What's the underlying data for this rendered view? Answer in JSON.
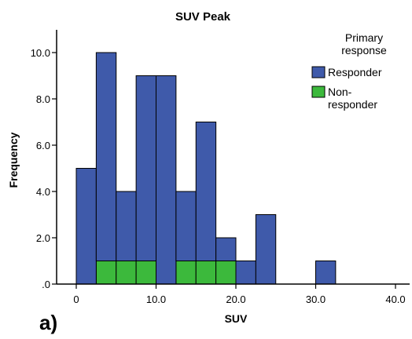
{
  "chart_data": {
    "type": "bar",
    "title": "SUV Peak",
    "xlabel": "SUV",
    "ylabel": "Frequency",
    "panel_label": "a)",
    "xlim": [
      -2.5,
      42.5
    ],
    "ylim": [
      0,
      11
    ],
    "bin_width": 2.5,
    "x_ticks": [
      {
        "value": 0,
        "label": "0"
      },
      {
        "value": 10,
        "label": "10.0"
      },
      {
        "value": 20,
        "label": "20.0"
      },
      {
        "value": 30,
        "label": "30.0"
      },
      {
        "value": 40,
        "label": "40.0"
      }
    ],
    "y_ticks": [
      {
        "value": 0,
        "label": ".0"
      },
      {
        "value": 2,
        "label": "2.0"
      },
      {
        "value": 4,
        "label": "4.0"
      },
      {
        "value": 6,
        "label": "6.0"
      },
      {
        "value": 8,
        "label": "8.0"
      },
      {
        "value": 10,
        "label": "10.0"
      }
    ],
    "legend": {
      "title_lines": [
        "Primary",
        "response"
      ],
      "placement": "top-right",
      "entries": [
        {
          "label_lines": [
            "Responder"
          ],
          "color": "#3f5aaa"
        },
        {
          "label_lines": [
            "Non-",
            "responder"
          ],
          "color": "#3cb93c"
        }
      ]
    },
    "stacked": true,
    "series": [
      {
        "name": "Non-responder",
        "color": "#3cb93c",
        "bin_starts": [
          0,
          2.5,
          5,
          7.5,
          10,
          12.5,
          15,
          17.5,
          20,
          22.5,
          25,
          27.5,
          30,
          32.5,
          35,
          37.5
        ],
        "values": [
          0,
          1,
          1,
          1,
          0,
          1,
          1,
          1,
          0,
          0,
          0,
          0,
          0,
          0,
          0,
          0
        ]
      },
      {
        "name": "Responder",
        "color": "#3f5aaa",
        "bin_starts": [
          0,
          2.5,
          5,
          7.5,
          10,
          12.5,
          15,
          17.5,
          20,
          22.5,
          25,
          27.5,
          30,
          32.5,
          35,
          37.5
        ],
        "values": [
          5,
          9,
          3,
          8,
          9,
          3,
          6,
          1,
          1,
          3,
          0,
          0,
          1,
          0,
          0,
          0
        ]
      }
    ],
    "grid": false
  }
}
